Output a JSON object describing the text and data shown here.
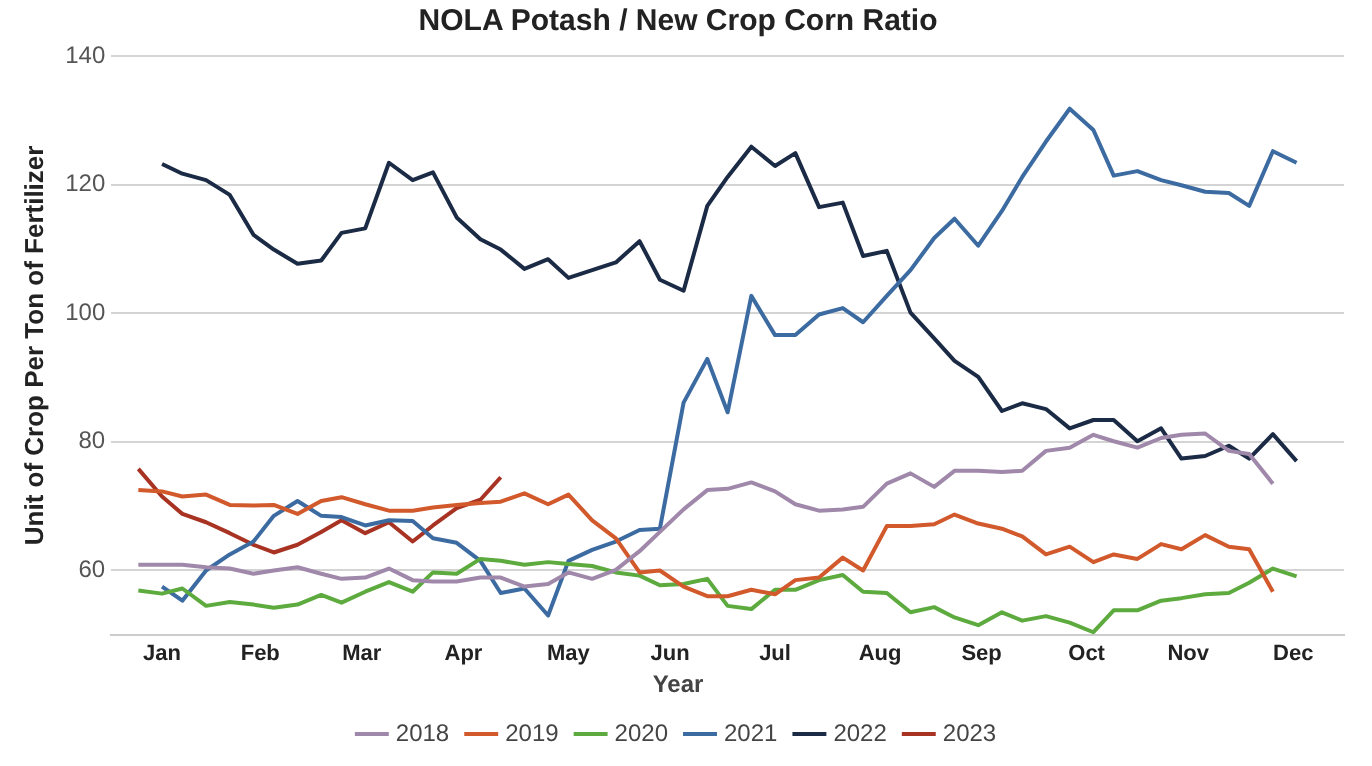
{
  "chart_data": {
    "type": "line",
    "title": "NOLA Potash / New Crop Corn Ratio",
    "ylabel": "Unit of Crop Per Ton of Fertilizer",
    "legend_title": "Year",
    "x": [
      "--01-09",
      "--01-16",
      "--01-22",
      "--01-29",
      "--02-05",
      "--02-12",
      "--02-18",
      "--02-25",
      "--03-04",
      "--03-10",
      "--03-17",
      "--03-24",
      "--03-31",
      "--04-06",
      "--04-13",
      "--04-20",
      "--04-26",
      "--05-03",
      "--05-10",
      "--05-16",
      "--05-23",
      "--05-30",
      "--06-06",
      "--06-12",
      "--06-19",
      "--06-26",
      "--07-02",
      "--07-09",
      "--07-16",
      "--07-22",
      "--07-29",
      "--08-05",
      "--08-11",
      "--08-18",
      "--08-25",
      "--09-01",
      "--09-07",
      "--09-14",
      "--09-21",
      "--09-27",
      "--10-04",
      "--10-11",
      "--10-18",
      "--10-24",
      "--10-31",
      "--11-07",
      "--11-13",
      "--11-20",
      "--11-27",
      "--12-03",
      "--12-10",
      "--12-17"
    ],
    "xlim": [
      "--01-01",
      "--12-31"
    ],
    "xticks": [
      {
        "value": "--01-16",
        "label": "Jan"
      },
      {
        "value": "--02-14",
        "label": "Feb"
      },
      {
        "value": "--03-16",
        "label": "Mar"
      },
      {
        "value": "--04-15",
        "label": "Apr"
      },
      {
        "value": "--05-16",
        "label": "May"
      },
      {
        "value": "--06-15",
        "label": "Jun"
      },
      {
        "value": "--07-16",
        "label": "Jul"
      },
      {
        "value": "--08-16",
        "label": "Aug"
      },
      {
        "value": "--09-15",
        "label": "Sep"
      },
      {
        "value": "--10-16",
        "label": "Oct"
      },
      {
        "value": "--11-15",
        "label": "Nov"
      },
      {
        "value": "--12-16",
        "label": "Dec"
      }
    ],
    "ylim": [
      50,
      140
    ],
    "yticks": [
      60,
      80,
      100,
      120,
      140
    ],
    "grid": "y",
    "legend": "bottom",
    "marker": "none",
    "line_style": "solid",
    "series": [
      {
        "name": "2018",
        "color": "#a088aa",
        "values": [
          60.9,
          60.9,
          60.9,
          60.5,
          60.3,
          59.5,
          60,
          60.5,
          59.5,
          58.7,
          58.9,
          60.3,
          58.5,
          58.3,
          58.3,
          58.9,
          58.9,
          57.5,
          57.9,
          59.7,
          58.7,
          60.1,
          63,
          66,
          69.5,
          72.5,
          72.7,
          73.7,
          72.3,
          70.3,
          69.3,
          69.5,
          69.9,
          73.5,
          75.1,
          73,
          75.5,
          75.5,
          75.3,
          75.5,
          78.6,
          79.1,
          81.1,
          80.1,
          79.1,
          80.6,
          81.1,
          81.3,
          78.6,
          78.1,
          73.5,
          null
        ]
      },
      {
        "name": "2019",
        "color": "#d2592b",
        "values": [
          72.5,
          72.3,
          71.5,
          71.8,
          70.2,
          70.1,
          70.2,
          68.8,
          70.8,
          71.4,
          70.3,
          69.3,
          69.3,
          69.8,
          70.2,
          70.5,
          70.7,
          72,
          70.3,
          71.8,
          67.8,
          65,
          59.7,
          60,
          57.5,
          56,
          56,
          57,
          56.3,
          58.5,
          58.9,
          62,
          60,
          66.9,
          66.9,
          67.2,
          68.7,
          67.3,
          66.5,
          65.3,
          62.5,
          63.7,
          61.3,
          62.5,
          61.8,
          64.1,
          63.3,
          65.5,
          63.7,
          63.3,
          56.7,
          null
        ]
      },
      {
        "name": "2020",
        "color": "#5daa3e",
        "values": [
          56.9,
          56.4,
          57.2,
          54.5,
          55.1,
          54.7,
          54.2,
          54.7,
          56.2,
          55,
          56.7,
          58.2,
          56.7,
          59.7,
          59.5,
          61.8,
          61.5,
          60.9,
          61.3,
          61,
          60.7,
          59.7,
          59.2,
          57.7,
          57.9,
          58.7,
          54.5,
          54,
          57,
          57,
          58.5,
          59.3,
          56.7,
          56.5,
          53.5,
          54.3,
          52.7,
          51.5,
          53.5,
          52.2,
          52.9,
          51.9,
          50.4,
          53.8,
          53.8,
          55.3,
          55.7,
          56.3,
          56.5,
          58.1,
          60.3,
          59.1
        ]
      },
      {
        "name": "2021",
        "color": "#3c6ba1",
        "values": [
          null,
          57.5,
          55.3,
          60,
          62.5,
          64.5,
          68.5,
          70.8,
          68.5,
          68.3,
          67,
          67.8,
          67.7,
          65,
          64.3,
          61.5,
          56.5,
          57.2,
          53,
          61.5,
          63.2,
          64.5,
          66.3,
          66.5,
          86.1,
          92.9,
          84.6,
          102.7,
          96.6,
          96.6,
          99.8,
          100.8,
          98.6,
          102.7,
          106.7,
          111.7,
          114.7,
          110.5,
          115.9,
          121.2,
          126.7,
          131.8,
          128.5,
          121.4,
          122.1,
          120.7,
          119.9,
          118.9,
          118.7,
          116.7,
          125.2,
          123.4
        ]
      },
      {
        "name": "2022",
        "color": "#1c2b45",
        "values": [
          null,
          123.2,
          121.7,
          120.7,
          118.4,
          112.2,
          109.9,
          107.7,
          108.2,
          112.5,
          113.2,
          123.4,
          120.7,
          121.9,
          114.9,
          111.5,
          109.9,
          106.9,
          108.4,
          105.5,
          106.7,
          107.9,
          111.2,
          105.2,
          103.5,
          116.7,
          121.2,
          125.9,
          122.9,
          124.9,
          116.5,
          117.2,
          108.9,
          109.7,
          100.1,
          96.1,
          92.6,
          90.1,
          84.8,
          86,
          85.1,
          82.1,
          83.4,
          83.4,
          80.1,
          82.1,
          77.4,
          77.8,
          79.4,
          77.4,
          81.2,
          77
        ]
      },
      {
        "name": "2023",
        "color": "#a83323",
        "values": [
          75.8,
          71.5,
          68.8,
          67.5,
          65.8,
          64,
          62.8,
          64,
          66,
          67.8,
          65.8,
          67.5,
          64.5,
          67,
          69.7,
          71,
          74.5,
          null,
          null,
          null,
          null,
          null,
          null,
          null,
          null,
          null,
          null,
          null,
          null,
          null,
          null,
          null,
          null,
          null,
          null,
          null,
          null,
          null,
          null,
          null,
          null,
          null,
          null,
          null,
          null,
          null,
          null,
          null,
          null,
          null,
          null,
          null
        ]
      }
    ]
  }
}
